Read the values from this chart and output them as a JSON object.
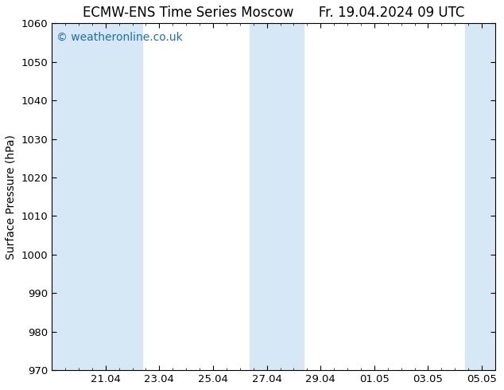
{
  "title": "ECMW-ENS Time Series Moscow      Fr. 19.04.2024 09 UTC",
  "ylabel": "Surface Pressure (hPa)",
  "ylim": [
    970,
    1060
  ],
  "ytick_step": 10,
  "xlim": [
    0,
    16.5
  ],
  "xtick_positions": [
    2,
    4,
    6,
    8,
    10,
    12,
    14,
    16
  ],
  "xtick_labels": [
    "21.04",
    "23.04",
    "25.04",
    "27.04",
    "29.04",
    "01.05",
    "03.05",
    "05.05"
  ],
  "shaded_bands": [
    [
      0,
      1.375
    ],
    [
      1.375,
      3.375
    ],
    [
      7.375,
      9.375
    ],
    [
      15.375,
      16.5
    ]
  ],
  "band_color": "#d6e8f5",
  "background_color": "#ffffff",
  "watermark_text": "© weatheronline.co.uk",
  "watermark_color": "#1e6eb5",
  "watermark_fontsize": 10,
  "title_fontsize": 12,
  "ylabel_fontsize": 10,
  "tick_fontsize": 9.5,
  "figsize": [
    6.34,
    4.9
  ],
  "dpi": 100
}
